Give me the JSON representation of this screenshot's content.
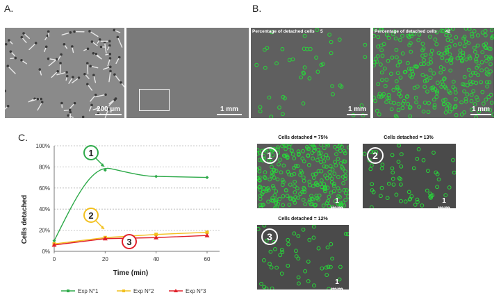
{
  "panels": {
    "a": {
      "letter": "A.",
      "scale_left": "200 µm",
      "scale_right": "1 mm"
    },
    "b": {
      "letter": "B.",
      "left_label": "Percentage of detached cells",
      "left_value": "5",
      "right_label": "Percentage of detached cells",
      "right_value": "42",
      "scale": "1 mm"
    },
    "c": {
      "letter": "C.",
      "callouts": [
        "1",
        "2",
        "3"
      ]
    },
    "d": {
      "images": [
        {
          "number": "1",
          "caption": "Cells detached = 75%",
          "scale": "1 mm"
        },
        {
          "number": "2",
          "caption": "Cells detached = 13%",
          "scale": "1 mm"
        },
        {
          "number": "3",
          "caption": "Cells detached = 12%",
          "scale": "1 mm"
        }
      ]
    }
  },
  "colors": {
    "exp1": "#2eaa4a",
    "exp2": "#f2c01e",
    "exp3": "#e0202a",
    "cell_marker": "#27d83a"
  },
  "chart_data": {
    "type": "line",
    "title": "",
    "xlabel": "Time (min)",
    "ylabel": "Cells detached",
    "xlim": [
      0,
      60
    ],
    "ylim": [
      0,
      100
    ],
    "x_ticks": [
      "0",
      "20",
      "40",
      "60"
    ],
    "y_ticks": [
      "0%",
      "20%",
      "40%",
      "60%",
      "80%",
      "100%"
    ],
    "grid": true,
    "legend_position": "bottom",
    "series": [
      {
        "name": "Exp N°1",
        "x": [
          0,
          20,
          40,
          60
        ],
        "y": [
          10,
          77,
          71,
          70
        ]
      },
      {
        "name": "Exp N°2",
        "x": [
          0,
          20,
          40,
          60
        ],
        "y": [
          7,
          13,
          16,
          18
        ]
      },
      {
        "name": "Exp N°3",
        "x": [
          0,
          20,
          40,
          60
        ],
        "y": [
          6,
          12,
          13,
          15
        ]
      }
    ]
  }
}
